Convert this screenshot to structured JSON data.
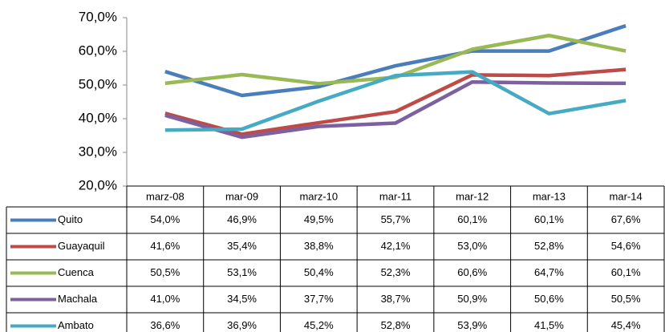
{
  "chart_data": {
    "type": "line",
    "categories": [
      "marz-08",
      "mar-09",
      "marz-10",
      "mar-11",
      "mar-12",
      "mar-13",
      "mar-14"
    ],
    "ylim": [
      20,
      70
    ],
    "yticks": [
      {
        "value": 20,
        "label": "20,0%"
      },
      {
        "value": 30,
        "label": "30,0%"
      },
      {
        "value": 40,
        "label": "40,0%"
      },
      {
        "value": 50,
        "label": "50,0%"
      },
      {
        "value": 60,
        "label": "60,0%"
      },
      {
        "value": 70,
        "label": "70,0%"
      }
    ],
    "series": [
      {
        "name": "Quito",
        "color": "#4a7ebb",
        "values": [
          54.0,
          46.9,
          49.5,
          55.7,
          60.1,
          60.1,
          67.6
        ],
        "value_labels": [
          "54,0%",
          "46,9%",
          "49,5%",
          "55,7%",
          "60,1%",
          "60,1%",
          "67,6%"
        ]
      },
      {
        "name": "Guayaquil",
        "color": "#be4b48",
        "values": [
          41.6,
          35.4,
          38.8,
          42.1,
          53.0,
          52.8,
          54.6
        ],
        "value_labels": [
          "41,6%",
          "35,4%",
          "38,8%",
          "42,1%",
          "53,0%",
          "52,8%",
          "54,6%"
        ]
      },
      {
        "name": "Cuenca",
        "color": "#98b954",
        "values": [
          50.5,
          53.1,
          50.4,
          52.3,
          60.6,
          64.7,
          60.1
        ],
        "value_labels": [
          "50,5%",
          "53,1%",
          "50,4%",
          "52,3%",
          "60,6%",
          "64,7%",
          "60,1%"
        ]
      },
      {
        "name": "Machala",
        "color": "#7d60a0",
        "values": [
          41.0,
          34.5,
          37.7,
          38.7,
          50.9,
          50.6,
          50.5
        ],
        "value_labels": [
          "41,0%",
          "34,5%",
          "37,7%",
          "38,7%",
          "50,9%",
          "50,6%",
          "50,5%"
        ]
      },
      {
        "name": "Ambato",
        "color": "#46aac5",
        "values": [
          36.6,
          36.9,
          45.2,
          52.8,
          53.9,
          41.5,
          45.4
        ],
        "value_labels": [
          "36,6%",
          "36,9%",
          "45,2%",
          "52,8%",
          "53,9%",
          "41,5%",
          "45,4%"
        ]
      }
    ]
  }
}
